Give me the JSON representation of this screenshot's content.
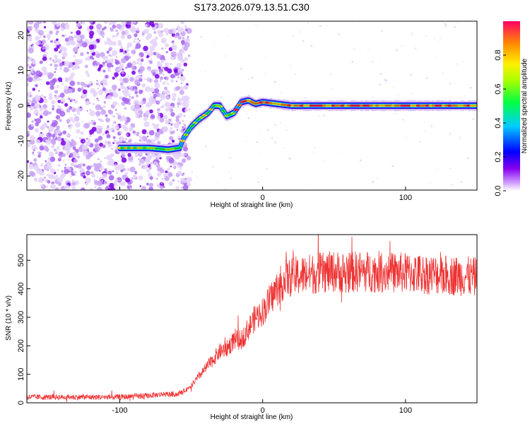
{
  "title": "S173.2026.079.13.51.C30",
  "chart_data": [
    {
      "type": "heatmap",
      "name": "spectrogram",
      "xlabel": "Height of straight line (km)",
      "ylabel": "Frequency (Hz)",
      "xlim": [
        -165,
        150
      ],
      "ylim": [
        -24,
        24
      ],
      "xticks": [
        -100,
        0,
        100
      ],
      "yticks": [
        -20,
        -10,
        0,
        10,
        20
      ],
      "colorbar": {
        "label": "Normalized spectral amplitude",
        "range": [
          0,
          1
        ],
        "ticks": [
          0.0,
          0.2,
          0.4,
          0.6,
          0.8
        ]
      },
      "noise_region_x": [
        -165,
        -55
      ],
      "ridge": [
        {
          "x": -100,
          "y": -12
        },
        {
          "x": -80,
          "y": -12
        },
        {
          "x": -66,
          "y": -12.5
        },
        {
          "x": -58,
          "y": -12
        },
        {
          "x": -55,
          "y": -9
        },
        {
          "x": -50,
          "y": -6
        },
        {
          "x": -45,
          "y": -4
        },
        {
          "x": -38,
          "y": -2
        },
        {
          "x": -34,
          "y": 0
        },
        {
          "x": -30,
          "y": 0
        },
        {
          "x": -25,
          "y": -3
        },
        {
          "x": -20,
          "y": -2
        },
        {
          "x": -15,
          "y": 1
        },
        {
          "x": -10,
          "y": 1.5
        },
        {
          "x": -5,
          "y": 0.5
        },
        {
          "x": 0,
          "y": 1
        },
        {
          "x": 20,
          "y": 0
        },
        {
          "x": 60,
          "y": 0
        },
        {
          "x": 100,
          "y": 0
        },
        {
          "x": 150,
          "y": 0
        }
      ]
    },
    {
      "type": "line",
      "name": "snr",
      "xlabel": "Height of straight line (km)",
      "ylabel": "SNR (10 * v/v)",
      "xlim": [
        -165,
        150
      ],
      "ylim": [
        0,
        590
      ],
      "xticks": [
        -100,
        0,
        100
      ],
      "yticks": [
        0,
        100,
        200,
        300,
        400,
        500
      ],
      "color": "#ee3333",
      "series": [
        {
          "name": "SNR",
          "x": [
            -165,
            -140,
            -120,
            -100,
            -80,
            -70,
            -60,
            -55,
            -50,
            -45,
            -40,
            -35,
            -30,
            -25,
            -20,
            -15,
            -10,
            -5,
            0,
            5,
            10,
            15,
            20,
            30,
            40,
            50,
            60,
            80,
            100,
            120,
            140,
            150
          ],
          "y": [
            20,
            20,
            20,
            20,
            25,
            30,
            30,
            40,
            60,
            90,
            120,
            150,
            180,
            190,
            220,
            220,
            260,
            300,
            320,
            360,
            400,
            430,
            440,
            450,
            455,
            460,
            460,
            460,
            455,
            450,
            445,
            440
          ]
        }
      ]
    }
  ]
}
